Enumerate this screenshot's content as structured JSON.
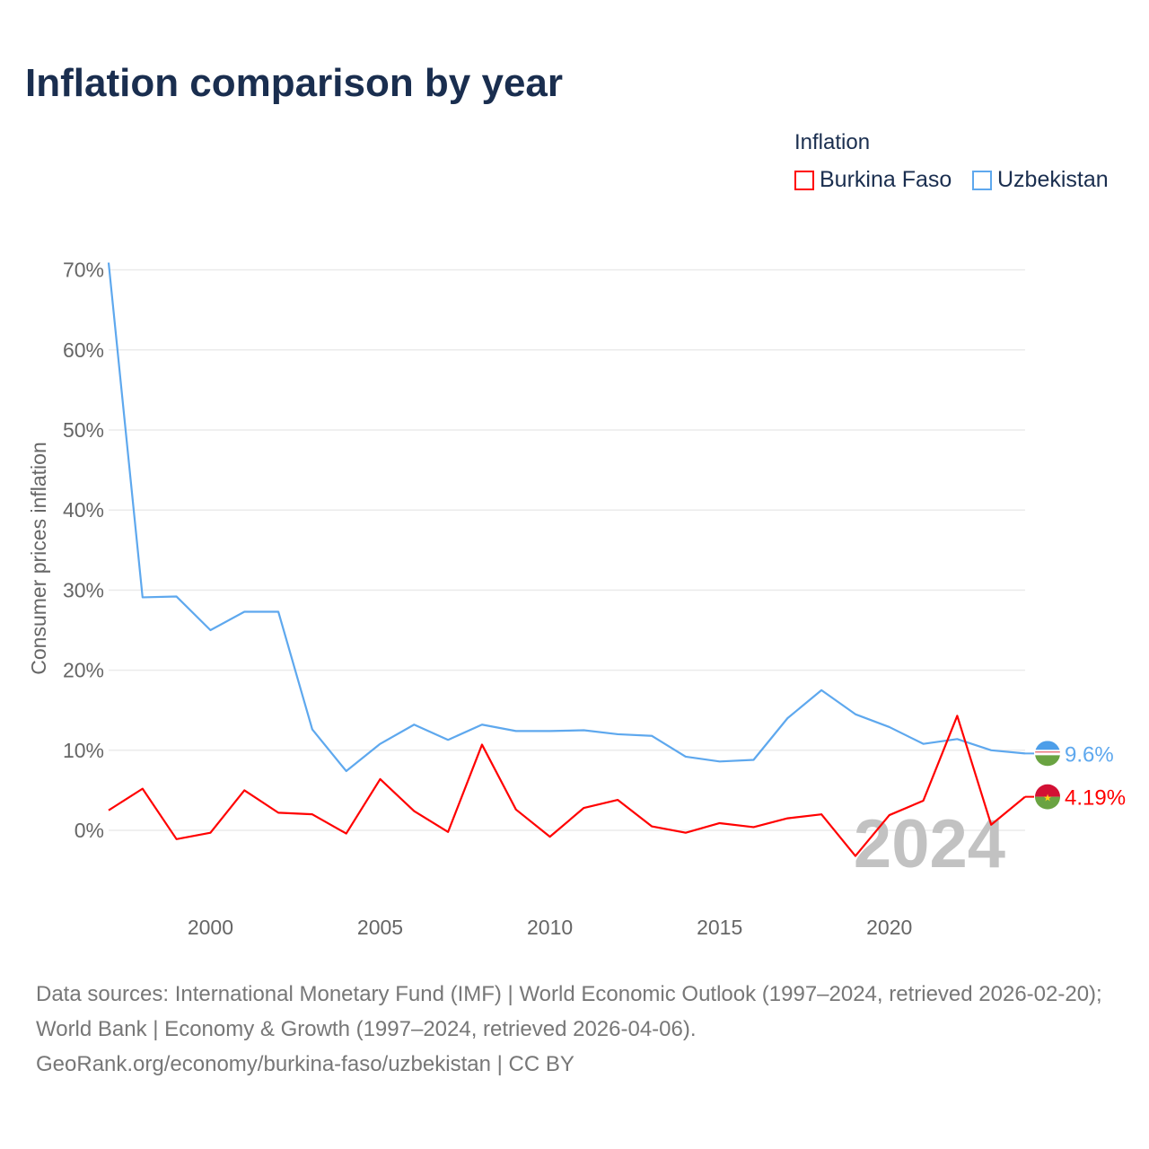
{
  "title": "Inflation comparison by year",
  "legend": {
    "title": "Inflation",
    "items": [
      {
        "label": "Burkina Faso",
        "color": "#ff0000"
      },
      {
        "label": "Uzbekistan",
        "color": "#5ea8ee"
      }
    ]
  },
  "source": {
    "line1": "Data sources: International Monetary Fund (IMF) | World Economic Outlook (1997–2024, retrieved 2026-02-20); World Bank | Economy & Growth (1997–2024, retrieved 2026-04-06).",
    "line2": "GeoRank.org/economy/burkina-faso/uzbekistan | CC BY"
  },
  "chart_data": {
    "type": "line",
    "title": "Inflation comparison by year",
    "xlabel": "",
    "ylabel": "Consumer prices inflation",
    "xlim": [
      1997,
      2024
    ],
    "ylim": [
      -8,
      71
    ],
    "xticks": [
      2000,
      2005,
      2010,
      2015,
      2020
    ],
    "yticks": [
      0,
      10,
      20,
      30,
      40,
      50,
      60,
      70
    ],
    "ytick_labels": [
      "0%",
      "10%",
      "20%",
      "30%",
      "40%",
      "50%",
      "60%",
      "70%"
    ],
    "grid": true,
    "year_watermark": "2024",
    "x": [
      1997,
      1998,
      1999,
      2000,
      2001,
      2002,
      2003,
      2004,
      2005,
      2006,
      2007,
      2008,
      2009,
      2010,
      2011,
      2012,
      2013,
      2014,
      2015,
      2016,
      2017,
      2018,
      2019,
      2020,
      2021,
      2022,
      2023,
      2024
    ],
    "series": [
      {
        "name": "Uzbekistan",
        "color": "#5ea8ee",
        "end_label": "9.6%",
        "values": [
          70.9,
          29.1,
          29.2,
          25.0,
          27.3,
          27.3,
          12.6,
          7.4,
          10.8,
          13.2,
          11.3,
          13.2,
          12.4,
          12.4,
          12.5,
          12.0,
          11.8,
          9.2,
          8.6,
          8.8,
          14.0,
          17.5,
          14.5,
          12.9,
          10.8,
          11.4,
          10.0,
          9.6
        ]
      },
      {
        "name": "Burkina Faso",
        "color": "#ff0000",
        "end_label": "4.19%",
        "values": [
          2.5,
          5.2,
          -1.1,
          -0.3,
          5.0,
          2.2,
          2.0,
          -0.4,
          6.4,
          2.4,
          -0.2,
          10.7,
          2.6,
          -0.8,
          2.8,
          3.8,
          0.5,
          -0.3,
          0.9,
          0.4,
          1.5,
          2.0,
          -3.2,
          1.9,
          3.7,
          14.3,
          0.7,
          4.19
        ]
      }
    ]
  }
}
